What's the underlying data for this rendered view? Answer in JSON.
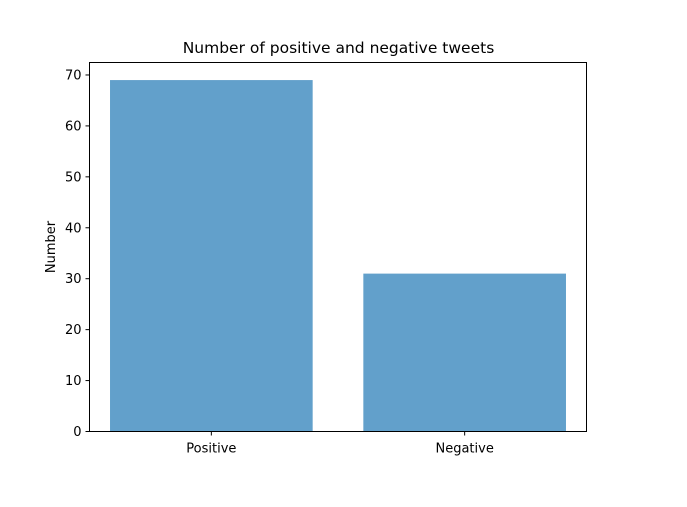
{
  "chart_data": {
    "type": "bar",
    "title": "Number of positive and negative tweets",
    "xlabel": "",
    "ylabel": "Number",
    "categories": [
      "Positive",
      "Negative"
    ],
    "values": [
      69,
      31
    ],
    "ylim": [
      0,
      72.45
    ],
    "yticks": [
      0,
      10,
      20,
      30,
      40,
      50,
      60,
      70
    ],
    "bar_color": "#62a0cb",
    "grid": false,
    "legend": "none"
  }
}
